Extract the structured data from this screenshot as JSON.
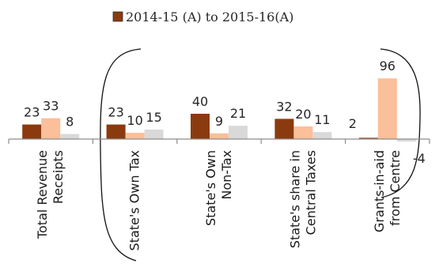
{
  "chart_data": {
    "type": "bar",
    "legend_position": "top",
    "grid": false,
    "categories": [
      [
        "Total Revenue",
        "Receipts"
      ],
      [
        "State's Own Tax"
      ],
      [
        "State's Own",
        "Non-Tax"
      ],
      [
        "State's share in",
        "Central Taxes"
      ],
      [
        "Grants-in-aid",
        "from Centre"
      ]
    ],
    "series": [
      {
        "name": "2014-15 (A) to 2015-16(A)",
        "values": [
          23,
          23,
          40,
          32,
          2
        ],
        "color": "#8B3A0F"
      },
      {
        "values": [
          33,
          10,
          9,
          20,
          96
        ],
        "color": "#FBBF9A"
      },
      {
        "values": [
          8,
          15,
          21,
          11,
          -4
        ],
        "color": "#D9D9D9"
      }
    ],
    "ylim": [
      -4,
      96
    ]
  }
}
